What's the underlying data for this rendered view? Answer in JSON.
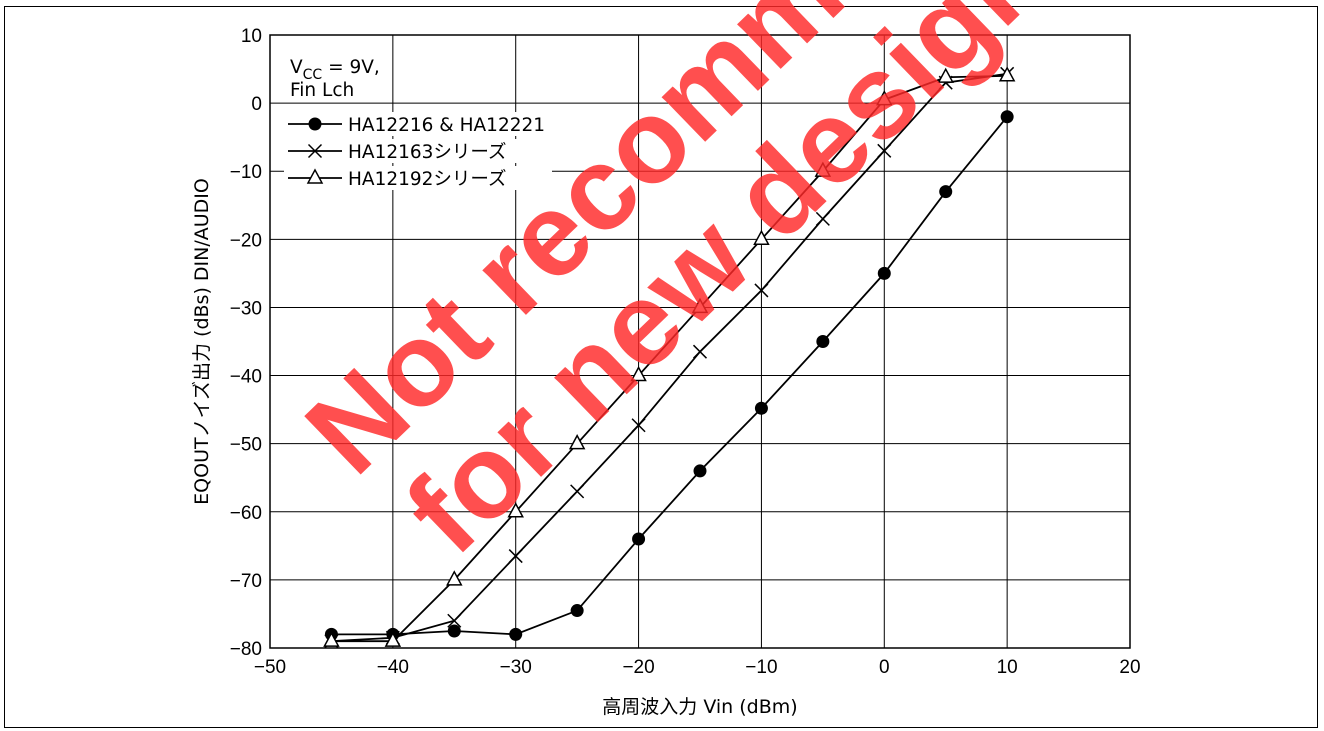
{
  "chart_data": {
    "type": "line",
    "title": "",
    "xlabel": "高周波入力 Vin (dBm)",
    "ylabel": "EQOUTノイズ出力 (dBs) DIN/AUDIO",
    "xlim": [
      -50,
      20
    ],
    "ylim": [
      -80,
      10
    ],
    "xticks": [
      -50,
      -40,
      -30,
      -20,
      -10,
      0,
      10,
      20
    ],
    "yticks": [
      -80,
      -70,
      -60,
      -50,
      -40,
      -30,
      -20,
      -10,
      0,
      10
    ],
    "xtick_labels": [
      "−50",
      "−40",
      "−30",
      "−20",
      "−10",
      "0",
      "10",
      "20"
    ],
    "ytick_labels": [
      "−80",
      "−70",
      "−60",
      "−50",
      "−40",
      "−30",
      "−20",
      "−10",
      "0",
      "10"
    ],
    "grid": true,
    "legend_position": "top-left",
    "annotation": {
      "v_base": "V",
      "v_sub": "CC",
      "v_rest": " = 9V,",
      "line2": "Fin Lch"
    },
    "series": [
      {
        "name": "HA12216 & HA12221",
        "marker": "filled-circle",
        "x": [
          -45,
          -40,
          -35,
          -30,
          -25,
          -20,
          -15,
          -10,
          -5,
          0,
          5,
          10
        ],
        "y": [
          -78,
          -78,
          -77.5,
          -78,
          -74.5,
          -64,
          -54,
          -44.8,
          -35,
          -25,
          -13,
          -2
        ]
      },
      {
        "name": "HA12163シリーズ",
        "marker": "cross",
        "x": [
          -45,
          -40,
          -35,
          -30,
          -25,
          -20,
          -15,
          -10,
          -5,
          0,
          5,
          10
        ],
        "y": [
          -79,
          -78.5,
          -76,
          -66.5,
          -57,
          -47.3,
          -36.5,
          -27.5,
          -17,
          -7,
          3,
          4.3
        ]
      },
      {
        "name": "HA12192シリーズ",
        "marker": "open-triangle",
        "x": [
          -45,
          -40,
          -35,
          -30,
          -25,
          -20,
          -15,
          -10,
          -5,
          0,
          5,
          10
        ],
        "y": [
          -79,
          -79,
          -70,
          -60,
          -50,
          -40,
          -30,
          -20,
          -10,
          0.5,
          3.8,
          4
        ]
      }
    ]
  },
  "watermark": {
    "line1": "Not recommended",
    "line2": "for new design",
    "color": "#ff2828"
  }
}
